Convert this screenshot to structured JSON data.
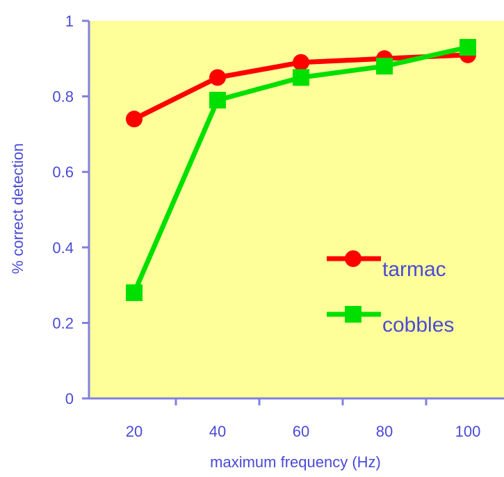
{
  "chart_data": {
    "type": "line",
    "xlabel": "maximum frequency (Hz)",
    "ylabel": "% correct detection",
    "x": [
      20,
      40,
      60,
      80,
      100
    ],
    "xticks": [
      "20",
      "40",
      "60",
      "80",
      "100"
    ],
    "yticks": [
      "0",
      "0.2",
      "0.4",
      "0.6",
      "0.8",
      "1"
    ],
    "ylim": [
      0,
      1
    ],
    "grid": false,
    "legend_position": "center-right",
    "series": [
      {
        "name": "tarmac",
        "values": [
          0.74,
          0.85,
          0.89,
          0.9,
          0.91
        ],
        "color": "#ff0000",
        "marker": "circle"
      },
      {
        "name": "cobbles",
        "values": [
          0.28,
          0.79,
          0.85,
          0.88,
          0.93
        ],
        "color": "#00e000",
        "marker": "square"
      }
    ]
  },
  "colors": {
    "plot_background": "#ffff99",
    "axis_text": "#4a4ad8",
    "axis_line": "#8080e0"
  }
}
